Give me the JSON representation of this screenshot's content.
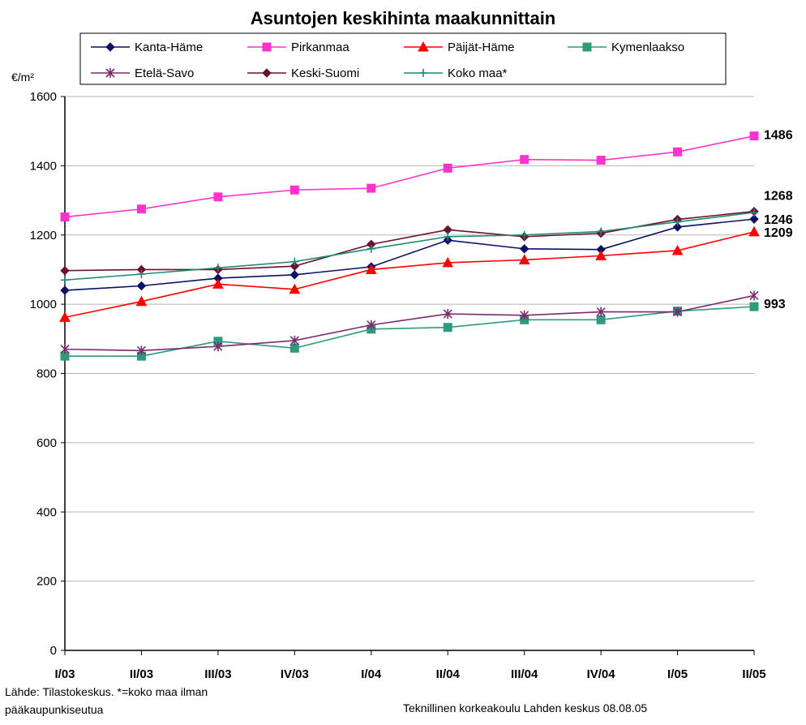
{
  "chart_data": {
    "type": "line",
    "title": "Asuntojen keskihinta maakunnittain",
    "ylabel": "€/m²",
    "xlabel": "",
    "ylim": [
      0,
      1600
    ],
    "yticks": [
      0,
      200,
      400,
      600,
      800,
      1000,
      1200,
      1400,
      1600
    ],
    "categories": [
      "I/03",
      "II/03",
      "III/03",
      "IV/03",
      "I/04",
      "II/04",
      "III/04",
      "IV/04",
      "I/05",
      "II/05"
    ],
    "grid": true,
    "legend_position": "top",
    "series": [
      {
        "name": "Kanta-Häme",
        "color": "#0a0f66",
        "marker": "diamond",
        "values": [
          1040,
          1053,
          1075,
          1085,
          1108,
          1185,
          1160,
          1158,
          1223,
          1246
        ]
      },
      {
        "name": "Pirkanmaa",
        "color": "#ff33cc",
        "marker": "square",
        "values": [
          1252,
          1275,
          1310,
          1330,
          1335,
          1393,
          1418,
          1416,
          1440,
          1486
        ]
      },
      {
        "name": "Päijät-Häme",
        "color": "#ff0000",
        "marker": "triangle",
        "values": [
          962,
          1008,
          1058,
          1043,
          1100,
          1120,
          1128,
          1140,
          1155,
          1209
        ]
      },
      {
        "name": "Kymenlaakso",
        "color": "#2e9a7e",
        "marker": "square",
        "values": [
          850,
          850,
          893,
          873,
          928,
          933,
          955,
          955,
          980,
          993
        ]
      },
      {
        "name": "Etelä-Savo",
        "color": "#7a2a6e",
        "marker": "star",
        "values": [
          870,
          866,
          878,
          895,
          940,
          972,
          968,
          978,
          978,
          1025
        ]
      },
      {
        "name": "Keski-Suomi",
        "color": "#6a1030",
        "marker": "diamond",
        "values": [
          1097,
          1100,
          1100,
          1110,
          1173,
          1215,
          1195,
          1205,
          1245,
          1268
        ]
      },
      {
        "name": "Koko maa*",
        "color": "#1f8a72",
        "marker": "plus",
        "values": [
          1070,
          1087,
          1105,
          1123,
          1160,
          1195,
          1200,
          1210,
          1238,
          1265
        ]
      }
    ],
    "end_labels": [
      {
        "series": "Pirkanmaa",
        "text": "1486"
      },
      {
        "series": "Keski-Suomi",
        "text": "1268"
      },
      {
        "series": "Kanta-Häme",
        "text": "1246"
      },
      {
        "series": "Päijät-Häme",
        "text": "1209"
      },
      {
        "series": "Kymenlaakso",
        "text": "993"
      }
    ]
  },
  "footer": {
    "source_note": "Lähde: Tilastokeskus. *=koko maa ilman\npääkaupunkiseutua",
    "credit": "Teknillinen korkeakoulu Lahden keskus 08.08.05"
  }
}
